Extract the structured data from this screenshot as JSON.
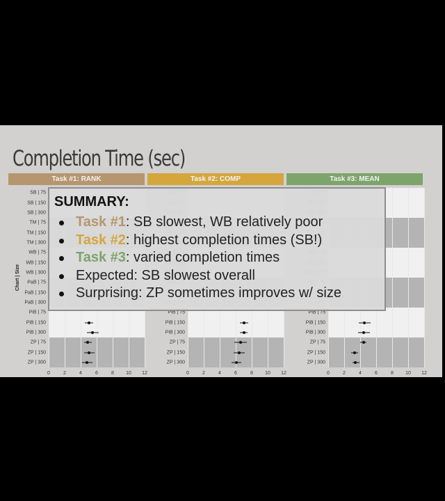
{
  "slide": {
    "title": "Completion Time (sec)",
    "y_axis_label": "Chart | Size",
    "x_ticks": [
      "0",
      "2",
      "4",
      "6",
      "8",
      "10",
      "12"
    ],
    "x_max": 12,
    "tasks": [
      {
        "label": "Task #1: RANK",
        "color": "#b6966e"
      },
      {
        "label": "Task #2: COMP",
        "color": "#d4a63c"
      },
      {
        "label": "Task #3: MEAN",
        "color": "#7da46a"
      }
    ]
  },
  "summary": {
    "heading": "SUMMARY:",
    "items": [
      {
        "task": "Task #1",
        "text": ": SB slowest, WB relatively poor"
      },
      {
        "task": "Task #2",
        "text": ": highest completion times (SB!)"
      },
      {
        "task": "Task #3",
        "text": ": varied completion times"
      },
      {
        "text": "Expected: SB slowest overall"
      },
      {
        "text": "Surprising: ZP sometimes improves w/ size"
      }
    ]
  },
  "chart_data": {
    "type": "scatter",
    "title": "Completion Time (sec)",
    "ylabel": "Chart | Size",
    "xlim": [
      0,
      12
    ],
    "categories": [
      "SB | 75",
      "SB | 150",
      "SB | 300",
      "TM | 75",
      "TM | 150",
      "TM | 300",
      "WB | 75",
      "WB | 150",
      "WB | 300",
      "PaB | 75",
      "PaB | 150",
      "PaB | 300",
      "PiB | 75",
      "PiB | 150",
      "PiB | 300",
      "ZP | 75",
      "ZP | 150",
      "ZP | 300"
    ],
    "panels": [
      {
        "name": "Task #1: RANK",
        "visible_points": [
          {
            "category": "PiB | 150",
            "mean": 5.0,
            "ci": [
              4.5,
              5.6
            ]
          },
          {
            "category": "PiB | 300",
            "mean": 5.5,
            "ci": [
              4.8,
              6.3
            ]
          },
          {
            "category": "ZP | 75",
            "mean": 4.9,
            "ci": [
              4.4,
              5.4
            ]
          },
          {
            "category": "ZP | 150",
            "mean": 5.0,
            "ci": [
              4.4,
              5.7
            ]
          },
          {
            "category": "ZP | 300",
            "mean": 4.8,
            "ci": [
              4.2,
              5.5
            ]
          }
        ]
      },
      {
        "name": "Task #2: COMP",
        "visible_points": [
          {
            "category": "PiB | 150",
            "mean": 7.0,
            "ci": [
              6.5,
              7.6
            ]
          },
          {
            "category": "PiB | 300",
            "mean": 7.0,
            "ci": [
              6.5,
              7.5
            ]
          },
          {
            "category": "ZP | 75",
            "mean": 6.6,
            "ci": [
              5.8,
              7.4
            ]
          },
          {
            "category": "ZP | 150",
            "mean": 6.4,
            "ci": [
              5.7,
              7.1
            ]
          },
          {
            "category": "ZP | 300",
            "mean": 6.1,
            "ci": [
              5.5,
              6.7
            ]
          }
        ]
      },
      {
        "name": "Task #3: MEAN",
        "visible_points": [
          {
            "category": "PiB | 150",
            "mean": 4.5,
            "ci": [
              3.8,
              5.3
            ]
          },
          {
            "category": "PiB | 300",
            "mean": 4.4,
            "ci": [
              3.7,
              5.2
            ]
          },
          {
            "category": "ZP | 75",
            "mean": 4.4,
            "ci": [
              4.0,
              4.8
            ]
          },
          {
            "category": "ZP | 150",
            "mean": 3.3,
            "ci": [
              2.9,
              3.7
            ]
          },
          {
            "category": "ZP | 300",
            "mean": 3.4,
            "ci": [
              3.0,
              3.9
            ]
          }
        ]
      }
    ]
  }
}
